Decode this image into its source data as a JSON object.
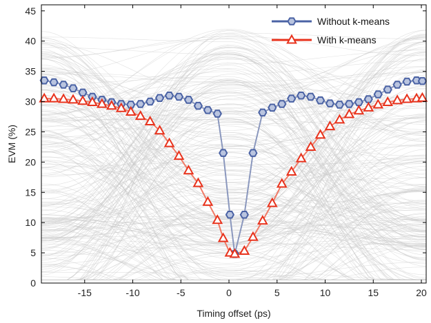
{
  "chart_data": {
    "type": "line",
    "title": "",
    "xlabel": "Timing offset (ps)",
    "ylabel": "EVM (%)",
    "xlim": [
      -19.5,
      20.5
    ],
    "ylim": [
      0,
      46
    ],
    "xticks": [
      -15,
      -10,
      -5,
      0,
      5,
      10,
      15,
      20
    ],
    "yticks": [
      0,
      5,
      10,
      15,
      20,
      25,
      30,
      35,
      40,
      45
    ],
    "grid": false,
    "legend_position": "top-right",
    "background": "eye-diagram traces in light gray",
    "series": [
      {
        "name": "Without k-means",
        "color": "#4a62a4",
        "marker": "hexagon",
        "x": [
          -19.2,
          -18.2,
          -17.2,
          -16.2,
          -15.2,
          -14.2,
          -13.2,
          -12.2,
          -11.2,
          -10.2,
          -9.2,
          -8.2,
          -7.2,
          -6.2,
          -5.2,
          -4.2,
          -3.2,
          -2.2,
          -1.2,
          -0.6,
          0.1,
          0.6,
          1.6,
          2.5,
          3.5,
          4.5,
          5.5,
          6.5,
          7.5,
          8.5,
          9.5,
          10.5,
          11.5,
          12.5,
          13.5,
          14.5,
          15.5,
          16.5,
          17.5,
          18.5,
          19.5,
          20.1
        ],
        "y": [
          33.5,
          33.2,
          32.8,
          32.2,
          31.5,
          30.8,
          30.3,
          29.9,
          29.6,
          29.5,
          29.6,
          30.0,
          30.6,
          31.0,
          30.8,
          30.3,
          29.3,
          28.6,
          28.0,
          21.5,
          11.3,
          4.8,
          11.3,
          21.5,
          28.2,
          29.0,
          29.6,
          30.5,
          31.0,
          30.8,
          30.2,
          29.7,
          29.5,
          29.6,
          29.9,
          30.4,
          31.2,
          32.0,
          32.8,
          33.3,
          33.5,
          33.4
        ]
      },
      {
        "name": "With k-means",
        "color": "#e8321c",
        "marker": "triangle",
        "x": [
          -19.2,
          -18.2,
          -17.2,
          -16.2,
          -15.2,
          -14.2,
          -13.2,
          -12.2,
          -11.2,
          -10.2,
          -9.2,
          -8.2,
          -7.2,
          -6.2,
          -5.2,
          -4.2,
          -3.2,
          -2.2,
          -1.2,
          -0.6,
          0.1,
          0.6,
          1.6,
          2.5,
          3.5,
          4.5,
          5.5,
          6.5,
          7.5,
          8.5,
          9.5,
          10.5,
          11.5,
          12.5,
          13.5,
          14.5,
          15.5,
          16.5,
          17.5,
          18.5,
          19.5,
          20.1
        ],
        "y": [
          30.5,
          30.5,
          30.4,
          30.3,
          30.1,
          29.9,
          29.6,
          29.3,
          28.9,
          28.3,
          27.6,
          26.7,
          25.2,
          23.1,
          21.0,
          18.6,
          16.5,
          13.4,
          10.4,
          7.4,
          5.0,
          4.8,
          5.3,
          7.6,
          10.3,
          13.2,
          16.4,
          18.4,
          20.6,
          22.5,
          24.5,
          25.9,
          27.0,
          27.9,
          28.5,
          29.0,
          29.5,
          29.9,
          30.2,
          30.4,
          30.5,
          30.6
        ]
      }
    ]
  }
}
